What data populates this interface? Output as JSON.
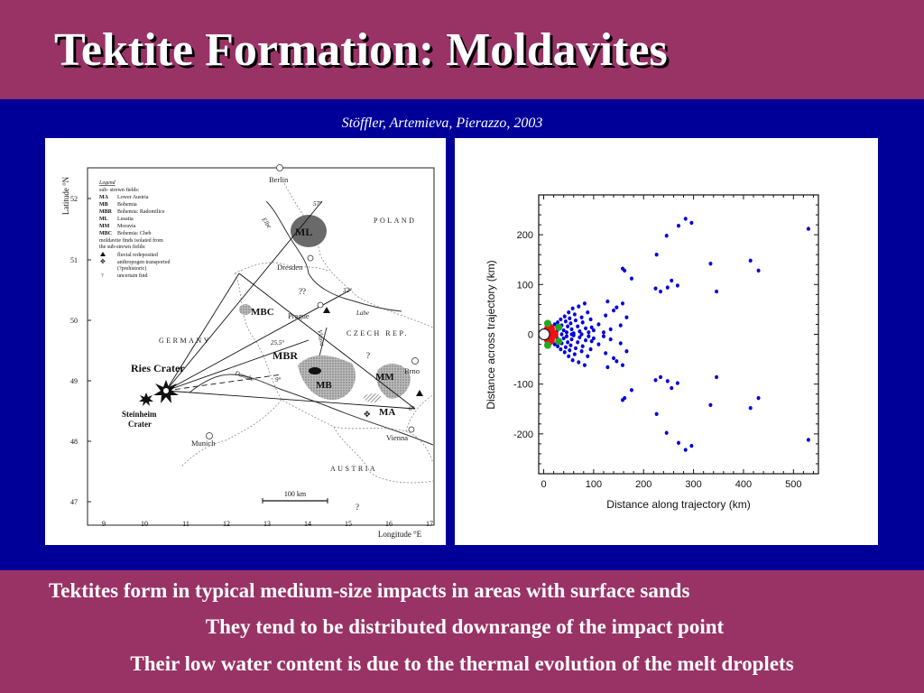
{
  "slide": {
    "title": "Tektite Formation: Moldavites",
    "citation": "Stöffler, Artemieva, Pierazzo, 2003",
    "bullets": [
      "Tektites form in typical medium-size impacts in areas with surface sands",
      "They tend to be distributed downrange of the impact point",
      "Their low water content is due to the thermal evolution of the melt droplets"
    ]
  },
  "colors": {
    "header": "#993366",
    "middle": "#000099",
    "points": "#0000dd",
    "projectile_red": "#ee1111",
    "projectile_green": "#22aa22"
  },
  "map": {
    "y_axis_title": "Latitude °N",
    "x_axis_title": "Longitude °E",
    "lat_ticks": [
      "52",
      "51",
      "50",
      "49",
      "48",
      "47"
    ],
    "lon_ticks": [
      "9",
      "10",
      "11",
      "12",
      "13",
      "14",
      "15",
      "16",
      "17"
    ],
    "legend": {
      "title": "Legend",
      "subtitle": "sub- strewn fields:",
      "entries": [
        {
          "code": "MA",
          "name": "Lower Austria"
        },
        {
          "code": "MB",
          "name": "Bohemia"
        },
        {
          "code": "MBR",
          "name": "Bohemia: Radomilice"
        },
        {
          "code": "ML",
          "name": "Lusatia"
        },
        {
          "code": "MM",
          "name": "Moravia"
        },
        {
          "code": "MBC",
          "name": "Bohemia: Cheb"
        }
      ],
      "note_1": "moldavite finds isolated from",
      "note_2": "the sub-strewn fields:",
      "symbols": [
        {
          "icon": "triangle-icon",
          "text": "fluvial redeposited"
        },
        {
          "icon": "cross-diamond-icon",
          "text": "anthropogen transported"
        },
        {
          "icon": "",
          "text": "(?prehistoric)"
        },
        {
          "icon": "question-icon",
          "text": "uncertain find"
        }
      ]
    },
    "cities": [
      "Berlin",
      "Dresden",
      "Prague",
      "Brno",
      "Vienna",
      "Munich"
    ],
    "countries": [
      "POLAND",
      "GERMANY",
      "CZECH REP.",
      "AUSTRIA"
    ],
    "rivers": [
      "Elbe",
      "Labe",
      "Vltava",
      "Danube"
    ],
    "fields": [
      "ML",
      "MBC",
      "MBR",
      "MB",
      "MM",
      "MA"
    ],
    "craters": [
      "Ries Crater",
      "Steinheim",
      "Crater"
    ],
    "ray_angles": [
      "57°",
      "32°",
      "25.5°",
      "9°",
      "0°"
    ],
    "scale_label": "100 km",
    "uncertain_marks": [
      "??",
      "?",
      "?"
    ]
  },
  "chart_data": {
    "type": "scatter",
    "xlabel": "Distance along trajectory (km)",
    "ylabel": "Distance across trajectory (km)",
    "xlim": [
      -10,
      550
    ],
    "ylim": [
      -280,
      280
    ],
    "xticks": [
      0,
      100,
      200,
      300,
      400,
      500
    ],
    "yticks": [
      200,
      100,
      0,
      -100,
      -200
    ],
    "xtick_labels": [
      "0",
      "100",
      "200",
      "300",
      "400",
      "500"
    ],
    "ytick_labels": [
      "200",
      "100",
      "0",
      "-100",
      "-200"
    ],
    "upper_half_points": [
      [
        14,
        9
      ],
      [
        18,
        14
      ],
      [
        22,
        20
      ],
      [
        26,
        6
      ],
      [
        28,
        24
      ],
      [
        32,
        12
      ],
      [
        34,
        30
      ],
      [
        36,
        18
      ],
      [
        40,
        8
      ],
      [
        42,
        36
      ],
      [
        44,
        26
      ],
      [
        46,
        4
      ],
      [
        48,
        16
      ],
      [
        50,
        44
      ],
      [
        52,
        32
      ],
      [
        54,
        22
      ],
      [
        56,
        10
      ],
      [
        58,
        52
      ],
      [
        60,
        2
      ],
      [
        62,
        40
      ],
      [
        64,
        28
      ],
      [
        68,
        16
      ],
      [
        70,
        56
      ],
      [
        72,
        6
      ],
      [
        76,
        34
      ],
      [
        78,
        24
      ],
      [
        82,
        62
      ],
      [
        84,
        12
      ],
      [
        88,
        44
      ],
      [
        90,
        4
      ],
      [
        94,
        30
      ],
      [
        96,
        14
      ],
      [
        100,
        8
      ],
      [
        110,
        20
      ],
      [
        120,
        4
      ],
      [
        124,
        38
      ],
      [
        128,
        66
      ],
      [
        134,
        10
      ],
      [
        140,
        48
      ],
      [
        146,
        54
      ],
      [
        154,
        18
      ],
      [
        158,
        62
      ],
      [
        158,
        132
      ],
      [
        162,
        128
      ],
      [
        166,
        34
      ],
      [
        176,
        112
      ],
      [
        224,
        92
      ],
      [
        226,
        160
      ],
      [
        234,
        86
      ],
      [
        246,
        198
      ],
      [
        248,
        94
      ],
      [
        256,
        108
      ],
      [
        268,
        98
      ],
      [
        270,
        218
      ],
      [
        284,
        232
      ],
      [
        296,
        224
      ],
      [
        334,
        142
      ],
      [
        346,
        86
      ],
      [
        414,
        148
      ],
      [
        430,
        128
      ],
      [
        530,
        212
      ]
    ],
    "mirror_about_x_axis": true,
    "projectile": {
      "open_circle_x": 1,
      "red_blob_x": 26,
      "green_points": [
        [
          8,
          22
        ],
        [
          8,
          -22
        ],
        [
          30,
          14
        ],
        [
          30,
          -14
        ]
      ]
    }
  }
}
